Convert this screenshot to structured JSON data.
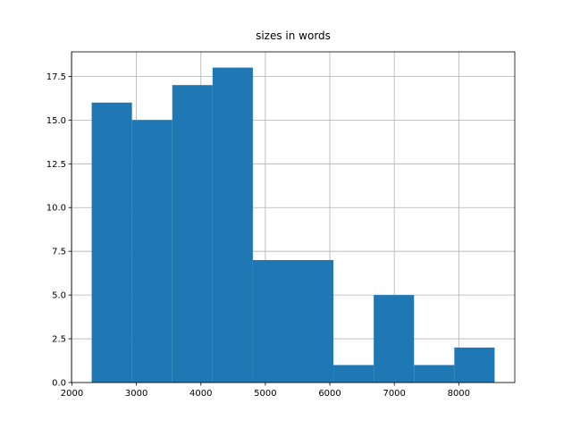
{
  "chart_data": {
    "type": "histogram",
    "title": "sizes in words",
    "bins": [
      2306,
      2931,
      3556,
      4181,
      4806,
      5431,
      6056,
      6681,
      7306,
      7931,
      8556
    ],
    "values": [
      16,
      15,
      17,
      18,
      7,
      7,
      1,
      5,
      1,
      2
    ],
    "color": "#1f77b4",
    "xlim": [
      1993,
      8869
    ],
    "xticks": [
      2000,
      3000,
      4000,
      5000,
      6000,
      7000,
      8000
    ],
    "ylim": [
      0,
      18.9
    ],
    "yticks": [
      {
        "value": 0,
        "label": "0.0"
      },
      {
        "value": 2.5,
        "label": "2.5"
      },
      {
        "value": 5,
        "label": "5.0"
      },
      {
        "value": 7.5,
        "label": "7.5"
      },
      {
        "value": 10,
        "label": "10.0"
      },
      {
        "value": 12.5,
        "label": "12.5"
      },
      {
        "value": 15,
        "label": "15.0"
      },
      {
        "value": 17.5,
        "label": "17.5"
      }
    ],
    "grid": true
  }
}
